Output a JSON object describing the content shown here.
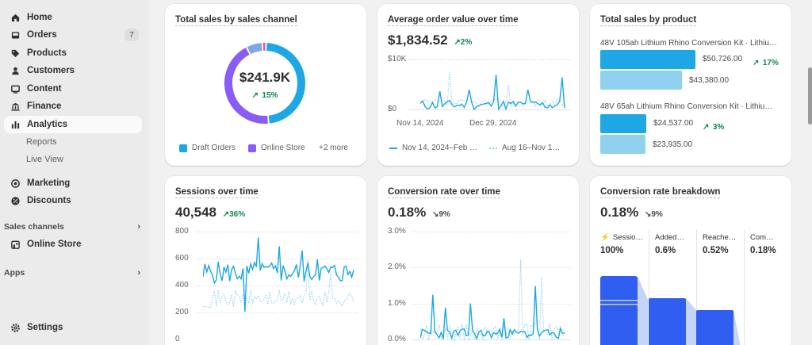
{
  "sidebar": {
    "items": [
      {
        "label": "Home",
        "icon": "home-icon"
      },
      {
        "label": "Orders",
        "icon": "inbox-icon",
        "badge": "7"
      },
      {
        "label": "Products",
        "icon": "tag-icon"
      },
      {
        "label": "Customers",
        "icon": "person-icon"
      },
      {
        "label": "Content",
        "icon": "content-icon"
      },
      {
        "label": "Finance",
        "icon": "bank-icon"
      },
      {
        "label": "Analytics",
        "icon": "bar-chart-icon"
      }
    ],
    "analytics_sub": [
      "Reports",
      "Live View"
    ],
    "items2": [
      {
        "label": "Marketing",
        "icon": "target-icon"
      },
      {
        "label": "Discounts",
        "icon": "discount-icon"
      }
    ],
    "sales_channels_label": "Sales channels",
    "online_store_label": "Online Store",
    "apps_label": "Apps",
    "settings_label": "Settings"
  },
  "cards": {
    "sales_channel": {
      "title": "Total sales by sales channel",
      "center_value": "$241.9K",
      "center_delta": "15%",
      "legend": [
        "Draft Orders",
        "Online Store",
        "+2 more"
      ],
      "colors": {
        "draft": "#1ea7e4",
        "online": "#8a5cf6",
        "other1": "#7fa7e6",
        "other2": "#e64fa0"
      }
    },
    "aov": {
      "title": "Average order value over time",
      "value": "$1,834.52",
      "delta": "2%",
      "y_top": "$10K",
      "y_bottom": "$0",
      "x_labels": [
        "Nov 14, 2024",
        "Dec 29, 2024"
      ],
      "legend": [
        "Nov 14, 2024–Feb …",
        "Aug 16–Nov 1…"
      ]
    },
    "by_product": {
      "title": "Total sales by product",
      "products": [
        {
          "name": "48V 105ah Lithium Rhino Conversion Kit · Lithiu…",
          "current": "$50,726.00",
          "delta": "17%",
          "previous": "$43,380.00",
          "current_value": 50726,
          "previous_value": 43380
        },
        {
          "name": "48V 65ah Lithium Rhino Conversion Kit · Lithiu…",
          "current": "$24,537.00",
          "delta": "3%",
          "previous": "$23,935.00",
          "current_value": 24537,
          "previous_value": 23935
        }
      ]
    },
    "sessions": {
      "title": "Sessions over time",
      "value": "40,548",
      "delta": "36%",
      "y_labels": [
        "800",
        "600",
        "400",
        "200",
        "0"
      ]
    },
    "conversion": {
      "title": "Conversion rate over time",
      "value": "0.18%",
      "delta": "9%",
      "y_labels": [
        "3.0%",
        "2.0%",
        "1.0%",
        "0.0%"
      ]
    },
    "breakdown": {
      "title": "Conversion rate breakdown",
      "value": "0.18%",
      "delta": "9%",
      "steps": [
        {
          "label": "Sessio…",
          "value": "100%"
        },
        {
          "label": "Added…",
          "value": "0.6%"
        },
        {
          "label": "Reache…",
          "value": "0.52%"
        },
        {
          "label": "Com…",
          "value": "0.18%"
        }
      ]
    }
  }
}
